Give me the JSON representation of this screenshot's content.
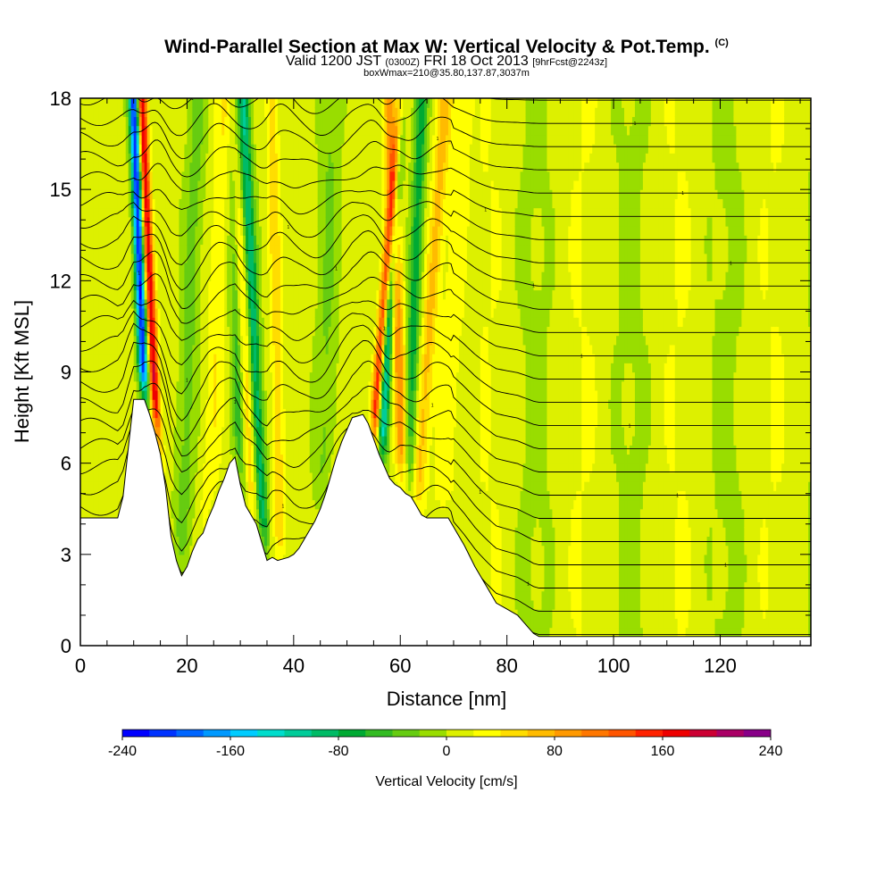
{
  "header": {
    "title": "Wind-Parallel Section at Max W: Vertical Velocity & Pot.Temp.",
    "title_mark": "(C)",
    "subtitle_a": "Valid 1200 JST",
    "subtitle_b": "(0300Z)",
    "subtitle_c": "FRI 18 Oct 2013",
    "subtitle_d": "[9hrFcst@2243z]",
    "subtitle2": "boxWmax=210@35.80,137.87,3037m"
  },
  "chart_data": {
    "type": "heatmap",
    "xlabel": "Distance [nm]",
    "ylabel": "Height [Kft MSL]",
    "xlim": [
      0,
      137
    ],
    "ylim": [
      0,
      18
    ],
    "x_ticks": [
      0,
      20,
      40,
      60,
      80,
      100,
      120
    ],
    "y_ticks": [
      0,
      3,
      6,
      9,
      12,
      15,
      18
    ],
    "terrain": [
      [
        0,
        4.2
      ],
      [
        7,
        4.2
      ],
      [
        8,
        4.9
      ],
      [
        9,
        6.5
      ],
      [
        10,
        8.1
      ],
      [
        12,
        8.1
      ],
      [
        13,
        7.6
      ],
      [
        14,
        7.0
      ],
      [
        15,
        6.3
      ],
      [
        16,
        5.2
      ],
      [
        17,
        3.6
      ],
      [
        18,
        2.8
      ],
      [
        19,
        2.3
      ],
      [
        20,
        2.6
      ],
      [
        21,
        3.1
      ],
      [
        22,
        3.5
      ],
      [
        23,
        3.7
      ],
      [
        24,
        4.2
      ],
      [
        25,
        4.6
      ],
      [
        26,
        5.1
      ],
      [
        27,
        5.5
      ],
      [
        28,
        6.0
      ],
      [
        29,
        6.2
      ],
      [
        30,
        5.3
      ],
      [
        31,
        4.6
      ],
      [
        32,
        4.3
      ],
      [
        33,
        4.0
      ],
      [
        34,
        3.4
      ],
      [
        35,
        2.8
      ],
      [
        36,
        2.9
      ],
      [
        37,
        2.8
      ],
      [
        39,
        2.9
      ],
      [
        40,
        3.0
      ],
      [
        41,
        3.2
      ],
      [
        42,
        3.5
      ],
      [
        43,
        3.8
      ],
      [
        44,
        4.1
      ],
      [
        45,
        4.5
      ],
      [
        46,
        5.0
      ],
      [
        47,
        5.6
      ],
      [
        48,
        6.2
      ],
      [
        49,
        6.7
      ],
      [
        50,
        7.1
      ],
      [
        51,
        7.5
      ],
      [
        53,
        7.6
      ],
      [
        54,
        7.3
      ],
      [
        55,
        6.8
      ],
      [
        56,
        6.3
      ],
      [
        57,
        5.9
      ],
      [
        58,
        5.5
      ],
      [
        59,
        5.3
      ],
      [
        60,
        5.2
      ],
      [
        61,
        5.0
      ],
      [
        62,
        4.9
      ],
      [
        63,
        4.6
      ],
      [
        64,
        4.3
      ],
      [
        65,
        4.2
      ],
      [
        69,
        4.2
      ],
      [
        70,
        3.9
      ],
      [
        72,
        3.3
      ],
      [
        74,
        2.6
      ],
      [
        76,
        2.0
      ],
      [
        78,
        1.4
      ],
      [
        80,
        1.2
      ],
      [
        82,
        1.0
      ],
      [
        83,
        0.8
      ],
      [
        84,
        0.6
      ],
      [
        85,
        0.4
      ],
      [
        86,
        0.3
      ],
      [
        87,
        0.3
      ],
      [
        137,
        0.3
      ]
    ],
    "updraft_bands": [
      {
        "center": 14,
        "lean": -0.25,
        "width": 0.9,
        "amplitude": 175
      },
      {
        "center": 31.5,
        "lean": -0.3,
        "width": 1.3,
        "amplitude": 60
      },
      {
        "center": 37,
        "lean": -0.1,
        "width": 1.1,
        "amplitude": 45
      },
      {
        "center": 55.5,
        "lean": 0.45,
        "width": 0.9,
        "amplitude": 150
      },
      {
        "center": 60,
        "lean": -0.2,
        "width": 1.3,
        "amplitude": 90
      },
      {
        "center": 64.5,
        "lean": 0.4,
        "width": 1.4,
        "amplitude": 60
      },
      {
        "center": 25,
        "lean": 0.2,
        "width": 1.6,
        "amplitude": 30
      },
      {
        "center": 69,
        "lean": 0.3,
        "width": 2.0,
        "amplitude": 25
      }
    ],
    "downdraft_bands": [
      {
        "center": 12,
        "lean": -0.2,
        "width": 0.9,
        "amplitude": 230
      },
      {
        "center": 33,
        "lean": -0.25,
        "width": 1.2,
        "amplitude": 110
      },
      {
        "center": 29.5,
        "lean": -0.1,
        "width": 1.2,
        "amplitude": 60
      },
      {
        "center": 57,
        "lean": 0.3,
        "width": 1.0,
        "amplitude": 130
      },
      {
        "center": 62,
        "lean": 0.2,
        "width": 1.2,
        "amplitude": 80
      },
      {
        "center": 20,
        "lean": 0.2,
        "width": 1.8,
        "amplitude": 35
      },
      {
        "center": 46,
        "lean": 0.1,
        "width": 2.0,
        "amplitude": 30
      }
    ],
    "isentropes": {
      "count": 24,
      "label_value": "1"
    },
    "colorbar": {
      "label": "Vertical Velocity [cm/s]",
      "min": -240,
      "max": 240,
      "step": 20,
      "tick_labels": [
        "-240",
        "-160",
        "-80",
        "0",
        "80",
        "160",
        "240"
      ],
      "colors": [
        "#0000ff",
        "#0033ff",
        "#0066ff",
        "#0099ff",
        "#00ccff",
        "#00ddcc",
        "#00cc99",
        "#00bb66",
        "#00aa33",
        "#33bb22",
        "#66cc11",
        "#99dd00",
        "#ddf000",
        "#ffff00",
        "#ffdd00",
        "#ffbb00",
        "#ff9900",
        "#ff7700",
        "#ff5500",
        "#ff2200",
        "#ee0000",
        "#cc0033",
        "#aa0066",
        "#880088"
      ]
    }
  }
}
